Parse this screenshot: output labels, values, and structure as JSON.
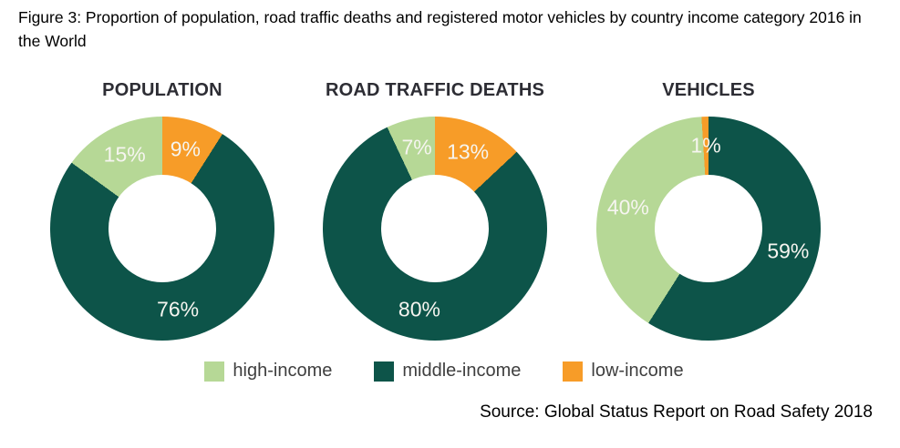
{
  "page": {
    "caption": "Figure 3: Proportion of population, road traffic deaths and registered motor vehicles by country income category 2016 in the World",
    "source": "Source: Global Status Report on Road Safety 2018"
  },
  "colors": {
    "high-income": "#b6d896",
    "middle-income": "#0d5449",
    "low-income": "#f79c28"
  },
  "legend": {
    "items": [
      {
        "label": "high-income",
        "color": "#b6d896"
      },
      {
        "label": "middle-income",
        "color": "#0d5449"
      },
      {
        "label": "low-income",
        "color": "#f79c28"
      }
    ]
  },
  "chart_data": [
    {
      "type": "pie",
      "subtype": "donut",
      "title": "POPULATION",
      "unit": "%",
      "start_angle_deg": 0,
      "direction": "clockwise-from-top",
      "slices": [
        {
          "label": "low-income",
          "value": 9
        },
        {
          "label": "middle-income",
          "value": 76
        },
        {
          "label": "high-income",
          "value": 15
        }
      ]
    },
    {
      "type": "pie",
      "subtype": "donut",
      "title": "ROAD TRAFFIC DEATHS",
      "unit": "%",
      "start_angle_deg": 0,
      "direction": "clockwise-from-top",
      "slices": [
        {
          "label": "low-income",
          "value": 13
        },
        {
          "label": "middle-income",
          "value": 80
        },
        {
          "label": "high-income",
          "value": 7
        }
      ]
    },
    {
      "type": "pie",
      "subtype": "donut",
      "title": "VEHICLES",
      "unit": "%",
      "start_angle_deg": -3.6,
      "direction": "clockwise-from-top",
      "slices": [
        {
          "label": "low-income",
          "value": 1
        },
        {
          "label": "middle-income",
          "value": 59
        },
        {
          "label": "high-income",
          "value": 40
        }
      ]
    }
  ]
}
